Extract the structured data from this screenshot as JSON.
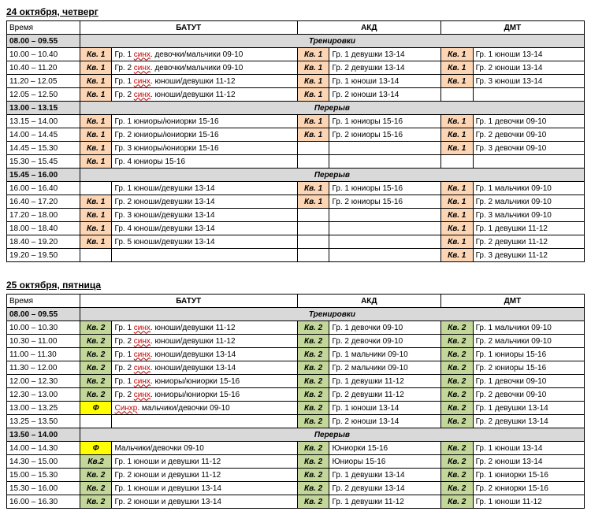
{
  "days": [
    {
      "title": "24 октября, четверг",
      "kv_class": "orange",
      "kv_label": "Кв. 1",
      "headers": {
        "time": "Время",
        "c1": "БАТУТ",
        "c2": "АКД",
        "c3": "ДМТ"
      },
      "rows": [
        {
          "type": "band",
          "time": "08.00 – 09.55",
          "label": "Тренировки"
        },
        {
          "type": "data",
          "time": "10.00 – 10.40",
          "k1": "Кв. 1",
          "c1_pre": "Гр. 1 ",
          "c1_red": "синх",
          "c1_post": ". девочки/мальчики 09-10",
          "k2": "Кв. 1",
          "c2": "Гр. 1 девушки 13-14",
          "k3": "Кв. 1",
          "c3": "Гр. 1 юноши 13-14"
        },
        {
          "type": "data",
          "time": "10.40 – 11.20",
          "k1": "Кв. 1",
          "c1_pre": "Гр. 2 ",
          "c1_red": "синх",
          "c1_post": ". девочки/мальчики 09-10",
          "k2": "Кв. 1",
          "c2": "Гр. 2 девушки 13-14",
          "k3": "Кв. 1",
          "c3": "Гр. 2 юноши 13-14"
        },
        {
          "type": "data",
          "time": "11.20 – 12.05",
          "k1": "Кв. 1",
          "c1_pre": "Гр. 1 ",
          "c1_red": "синх",
          "c1_post": ". юноши/девушки 11-12",
          "k2": "Кв. 1",
          "c2": "Гр. 1 юноши 13-14",
          "k3": "Кв. 1",
          "c3": "Гр. 3 юноши 13-14"
        },
        {
          "type": "data",
          "time": "12.05 – 12.50",
          "k1": "Кв. 1",
          "c1_pre": "Гр. 2 ",
          "c1_red": "синх",
          "c1_post": ". юноши/девушки 11-12",
          "k2": "Кв. 1",
          "c2": "Гр. 2 юноши 13-14",
          "k3": "",
          "c3": ""
        },
        {
          "type": "band",
          "time": "13.00 – 13.15",
          "label": "Перерыв"
        },
        {
          "type": "data",
          "time": "13.15 – 14.00",
          "k1": "Кв. 1",
          "c1": "Гр. 1 юниоры/юниорки 15-16",
          "k2": "Кв. 1",
          "c2": "Гр. 1 юниоры 15-16",
          "k3": "Кв. 1",
          "c3": "Гр. 1 девочки 09-10"
        },
        {
          "type": "data",
          "time": "14.00 – 14.45",
          "k1": "Кв. 1",
          "c1": "Гр. 2 юниоры/юниорки 15-16",
          "k2": "Кв. 1",
          "c2": "Гр. 2 юниоры 15-16",
          "k3": "Кв. 1",
          "c3": "Гр. 2 девочки 09-10"
        },
        {
          "type": "data",
          "time": "14.45 – 15.30",
          "k1": "Кв. 1",
          "c1": "Гр. 3 юниоры/юниорки 15-16",
          "k2": "",
          "c2": "",
          "k3": "Кв. 1",
          "c3": "Гр. 3 девочки 09-10"
        },
        {
          "type": "data",
          "time": "15.30 – 15.45",
          "k1": "Кв. 1",
          "c1": "Гр. 4 юниоры 15-16",
          "k2": "",
          "c2": "",
          "k3": "",
          "c3": ""
        },
        {
          "type": "band",
          "time": "15.45 – 16.00",
          "label": "Перерыв"
        },
        {
          "type": "data",
          "time": "16.00 – 16.40",
          "k1": "",
          "c1": "Гр. 1 юноши/девушки 13-14",
          "k2": "Кв. 1",
          "c2": "Гр. 1 юниоры 15-16",
          "k3": "Кв. 1",
          "c3": "Гр. 1 мальчики 09-10"
        },
        {
          "type": "data",
          "time": "16.40 – 17.20",
          "k1": "Кв. 1",
          "c1": "Гр. 2 юноши/девушки 13-14",
          "k2": "Кв. 1",
          "c2": "Гр. 2 юниоры 15-16",
          "k3": "Кв. 1",
          "c3": "Гр. 2 мальчики 09-10"
        },
        {
          "type": "data",
          "time": "17.20 – 18.00",
          "k1": "Кв. 1",
          "c1": "Гр. 3 юноши/девушки 13-14",
          "k2": "",
          "c2": "",
          "k3": "Кв. 1",
          "c3": "Гр. 3 мальчики 09-10"
        },
        {
          "type": "data",
          "time": "18.00 – 18.40",
          "k1": "Кв. 1",
          "c1": "Гр. 4 юноши/девушки 13-14",
          "k2": "",
          "c2": "",
          "k3": "Кв. 1",
          "c3": "Гр. 1 девушки 11-12"
        },
        {
          "type": "data",
          "time": "18.40 – 19.20",
          "k1": "Кв. 1",
          "c1": "Гр. 5 юноши/девушки 13-14",
          "k2": "",
          "c2": "",
          "k3": "Кв. 1",
          "c3": "Гр. 2 девушки 11-12"
        },
        {
          "type": "data",
          "time": "19.20 – 19.50",
          "k1": "",
          "c1": "",
          "k2": "",
          "c2": "",
          "k3": "Кв. 1",
          "c3": "Гр. 3 девушки 11-12"
        }
      ]
    },
    {
      "title": "25 октября, пятница",
      "kv_class": "green",
      "kv_label": "Кв. 2",
      "headers": {
        "time": "Время",
        "c1": "БАТУТ",
        "c2": "АКД",
        "c3": "ДМТ"
      },
      "rows": [
        {
          "type": "band",
          "time": "08.00 – 09.55",
          "label": "Тренировки"
        },
        {
          "type": "data",
          "time": "10.00 – 10.30",
          "k1": "Кв. 2",
          "c1_pre": "Гр. 1 ",
          "c1_red": "синх",
          "c1_post": ". юноши/девушки 11-12",
          "k2": "Кв. 2",
          "c2": "Гр. 1 девочки 09-10",
          "k3": "Кв. 2",
          "c3": "Гр. 1 мальчики 09-10"
        },
        {
          "type": "data",
          "time": "10.30 – 11.00",
          "k1": "Кв. 2",
          "c1_pre": "Гр. 2 ",
          "c1_red": "синх",
          "c1_post": ". юноши/девушки 11-12",
          "k2": "Кв. 2",
          "c2": "Гр. 2 девочки 09-10",
          "k3": "Кв. 2",
          "c3": "Гр. 2 мальчики 09-10"
        },
        {
          "type": "data",
          "time": "11.00 – 11.30",
          "k1": "Кв. 2",
          "c1_pre": "Гр. 1 ",
          "c1_red": "синх",
          "c1_post": ". юноши/девушки 13-14",
          "k2": "Кв. 2",
          "c2": "Гр. 1 мальчики 09-10",
          "k3": "Кв. 2",
          "c3": "Гр. 1 юниоры 15-16"
        },
        {
          "type": "data",
          "time": "11.30 – 12.00",
          "k1": "Кв. 2",
          "c1_pre": "Гр. 2 ",
          "c1_red": "синх",
          "c1_post": ". юноши/девушки 13-14",
          "k2": "Кв. 2",
          "c2": "Гр. 2 мальчики 09-10",
          "k3": "Кв. 2",
          "c3": "Гр. 2 юниоры 15-16"
        },
        {
          "type": "data",
          "time": "12.00 – 12.30",
          "k1": "Кв. 2",
          "c1_pre": "Гр. 1 ",
          "c1_red": "синх",
          "c1_post": ". юниоры/юниорки 15-16",
          "k2": "Кв. 2",
          "c2": "Гр. 1 девушки 11-12",
          "k3": "Кв. 2",
          "c3": "Гр. 1 девочки 09-10"
        },
        {
          "type": "data",
          "time": "12.30 – 13.00",
          "k1": "Кв. 2",
          "c1_pre": "Гр. 2 ",
          "c1_red": "синх",
          "c1_post": ". юниоры/юниорки 15-16",
          "k2": "Кв. 2",
          "c2": "Гр. 2 девушки 11-12",
          "k3": "Кв. 2",
          "c3": "Гр. 2 девочки 09-10"
        },
        {
          "type": "data",
          "time": "13.00 – 13.25",
          "k1": "Ф",
          "k1_class": "yellow",
          "c1_pre": "",
          "c1_red": "Синхр",
          "c1_post": ". мальчики/девочки 09-10",
          "k2": "Кв. 2",
          "c2": "Гр. 1 юноши 13-14",
          "k3": "Кв. 2",
          "c3": "Гр. 1 девушки 13-14"
        },
        {
          "type": "data",
          "time": "13.25 – 13.50",
          "k1": "",
          "c1": "",
          "k2": "Кв. 2",
          "c2": "Гр. 2 юноши 13-14",
          "k3": "Кв. 2",
          "c3": "Гр. 2 девушки 13-14"
        },
        {
          "type": "band",
          "time": "13.50 – 14.00",
          "label": "Перерыв"
        },
        {
          "type": "data",
          "time": "14.00 – 14.30",
          "k1": "Ф",
          "k1_class": "yellow",
          "c1": "Мальчики/девочки 09-10",
          "k2": "Кв. 2",
          "c2": "Юниорки 15-16",
          "k3": "Кв. 2",
          "c3": "Гр. 1 юноши 13-14"
        },
        {
          "type": "data",
          "time": "14.30 – 15.00",
          "k1": "Кв.2",
          "c1": "Гр. 1 юноши и девушки 11-12",
          "k2": "Кв. 2",
          "c2": "Юниоры 15-16",
          "k3": "Кв. 2",
          "c3": "Гр. 2 юноши 13-14"
        },
        {
          "type": "data",
          "time": "15.00 – 15.30",
          "k1": "Кв. 2",
          "c1": "Гр. 2 юноши и девушки 11-12",
          "k2": "Кв. 2",
          "c2": "Гр. 1 девушки 13-14",
          "k3": "Кв. 2",
          "c3": "Гр. 1 юниорки 15-16"
        },
        {
          "type": "data",
          "time": "15.30 – 16.00",
          "k1": "Кв. 2",
          "c1": "Гр. 1 юноши и девушки 13-14",
          "k2": "Кв. 2",
          "c2": "Гр. 2 девушки 13-14",
          "k3": "Кв. 2",
          "c3": "Гр. 2 юниорки 15-16"
        },
        {
          "type": "data",
          "time": "16.00 – 16.30",
          "k1": "Кв. 2",
          "c1": "Гр. 2 юноши и девушки 13-14",
          "k2": "Кв. 2",
          "c2": "Гр. 1 девушки 11-12",
          "k3": "Кв. 2",
          "c3": "Гр. 1 юноши 11-12"
        }
      ]
    }
  ]
}
